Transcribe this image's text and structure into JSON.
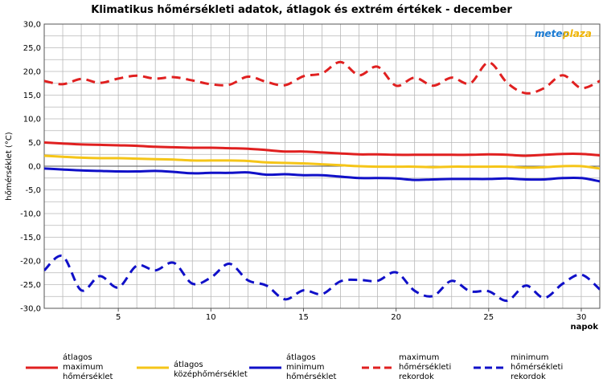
{
  "chart_data": {
    "type": "line",
    "title": "Klimatikus hőmérsékleti adatok, átlagok és extrém értékek - december",
    "ylabel": "hőmérséklet (°C)",
    "xlabel": "napok",
    "ylim": [
      -30,
      30
    ],
    "xlim": [
      1,
      31
    ],
    "grid": true,
    "legend_position": "bottom",
    "yticks": [
      "30,0",
      "25,0",
      "20,0",
      "15,0",
      "10,0",
      "5,0",
      "0,0",
      "-5,0",
      "-10,0",
      "-15,0",
      "-20,0",
      "-25,0",
      "-30,0"
    ],
    "xticks": [
      "5",
      "10",
      "15",
      "20",
      "25",
      "30"
    ],
    "x": [
      1,
      2,
      3,
      4,
      5,
      6,
      7,
      8,
      9,
      10,
      11,
      12,
      13,
      14,
      15,
      16,
      17,
      18,
      19,
      20,
      21,
      22,
      23,
      24,
      25,
      26,
      27,
      28,
      29,
      30,
      31
    ],
    "series": [
      {
        "name": "átlagos maximum hőmérséklet",
        "color": "#e02020",
        "dash": false,
        "values": [
          5.0,
          4.8,
          4.6,
          4.5,
          4.4,
          4.3,
          4.1,
          4.0,
          3.9,
          3.9,
          3.8,
          3.7,
          3.4,
          3.1,
          3.1,
          2.9,
          2.7,
          2.5,
          2.5,
          2.4,
          2.4,
          2.4,
          2.4,
          2.4,
          2.5,
          2.4,
          2.2,
          2.4,
          2.6,
          2.6,
          2.3
        ]
      },
      {
        "name": "átlagos középhőmérséklet",
        "color": "#f5c518",
        "dash": false,
        "values": [
          2.2,
          2.0,
          1.8,
          1.7,
          1.7,
          1.6,
          1.5,
          1.4,
          1.2,
          1.2,
          1.2,
          1.1,
          0.8,
          0.7,
          0.6,
          0.4,
          0.2,
          0.0,
          -0.1,
          -0.1,
          -0.1,
          -0.2,
          -0.1,
          -0.1,
          -0.1,
          -0.1,
          -0.3,
          -0.2,
          0.0,
          0.0,
          -0.5
        ]
      },
      {
        "name": "átlagos minimum hőmérséklet",
        "color": "#1010c8",
        "dash": false,
        "values": [
          -0.5,
          -0.7,
          -0.9,
          -1.0,
          -1.1,
          -1.1,
          -1.0,
          -1.2,
          -1.5,
          -1.4,
          -1.4,
          -1.3,
          -1.8,
          -1.7,
          -1.9,
          -1.9,
          -2.2,
          -2.5,
          -2.5,
          -2.6,
          -2.9,
          -2.8,
          -2.7,
          -2.7,
          -2.7,
          -2.6,
          -2.8,
          -2.8,
          -2.5,
          -2.5,
          -3.2
        ]
      },
      {
        "name": "maximum hőmérsékleti rekordok",
        "color": "#e02020",
        "dash": true,
        "values": [
          18.0,
          17.3,
          18.4,
          17.6,
          18.5,
          19.1,
          18.5,
          18.8,
          18.1,
          17.3,
          17.2,
          18.9,
          17.8,
          17.1,
          19.0,
          19.6,
          22.0,
          19.2,
          21.0,
          17.0,
          18.7,
          17.0,
          18.7,
          17.5,
          21.9,
          17.6,
          15.4,
          16.5,
          19.2,
          16.5,
          18.0
        ]
      },
      {
        "name": "minimum hőmérsékleti rekordok",
        "color": "#1010c8",
        "dash": true,
        "values": [
          -22.0,
          -19.0,
          -26.2,
          -23.2,
          -25.6,
          -21.0,
          -22.0,
          -20.4,
          -24.8,
          -23.5,
          -20.6,
          -24.1,
          -25.2,
          -28.1,
          -26.2,
          -27.0,
          -24.3,
          -24.0,
          -24.2,
          -22.4,
          -26.3,
          -27.4,
          -24.2,
          -26.4,
          -26.4,
          -28.4,
          -25.2,
          -27.8,
          -24.8,
          -22.9,
          -26.0
        ]
      }
    ]
  },
  "logo": {
    "text_left": "meteo",
    "text_right": "plaza",
    "color_left": "#1a7bd4",
    "color_right": "#f0b400"
  },
  "legend": [
    {
      "lines": [
        "átlagos",
        "maximum",
        "hőmérséklet"
      ]
    },
    {
      "lines": [
        "átlagos",
        "középhőmérséklet"
      ]
    },
    {
      "lines": [
        "átlagos",
        "minimum",
        "hőmérséklet"
      ]
    },
    {
      "lines": [
        "maximum",
        "hőmérsékleti",
        "rekordok"
      ]
    },
    {
      "lines": [
        "minimum",
        "hőmérsékleti",
        "rekordok"
      ]
    }
  ]
}
